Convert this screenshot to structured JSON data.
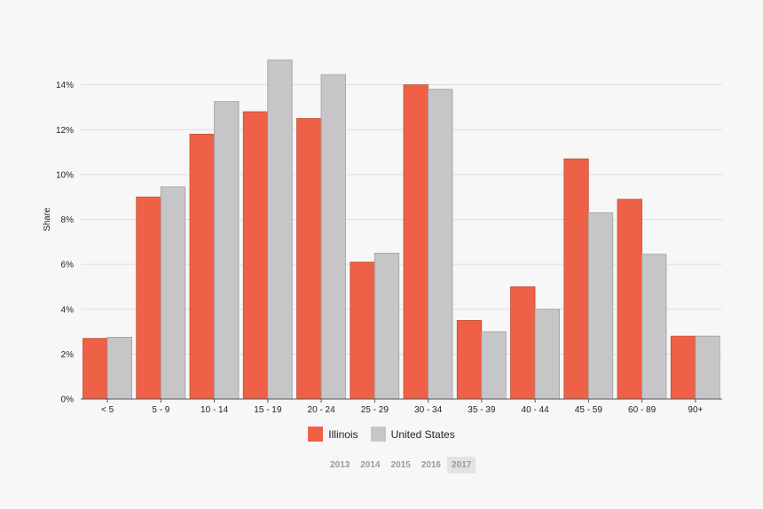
{
  "colors": {
    "series_0": "#ef6146",
    "series_1": "#c6c6c9",
    "grid": "#dedede",
    "axis": "#555555"
  },
  "chart_data": {
    "type": "bar",
    "ylabel": "Share",
    "ylim": [
      0,
      16
    ],
    "yticks": [
      0,
      2,
      4,
      6,
      8,
      10,
      12,
      14
    ],
    "ytick_labels": [
      "0%",
      "2%",
      "4%",
      "6%",
      "8%",
      "10%",
      "12%",
      "14%"
    ],
    "grid": true,
    "legend_position": "bottom-center",
    "categories": [
      "< 5",
      "5 - 9",
      "10 - 14",
      "15 - 19",
      "20 - 24",
      "25 - 29",
      "30 - 34",
      "35 - 39",
      "40 - 44",
      "45 - 59",
      "60 - 89",
      "90+"
    ],
    "series": [
      {
        "name": "Illinois",
        "values": [
          2.7,
          9.0,
          11.8,
          12.8,
          12.5,
          6.1,
          14.0,
          3.5,
          5.0,
          10.7,
          8.9,
          2.8
        ]
      },
      {
        "name": "United States",
        "values": [
          2.75,
          9.45,
          13.25,
          15.1,
          14.45,
          6.5,
          13.8,
          3.0,
          4.0,
          8.3,
          6.45,
          2.8
        ]
      }
    ]
  },
  "years": {
    "items": [
      "2013",
      "2014",
      "2015",
      "2016",
      "2017"
    ],
    "selected": "2017"
  }
}
